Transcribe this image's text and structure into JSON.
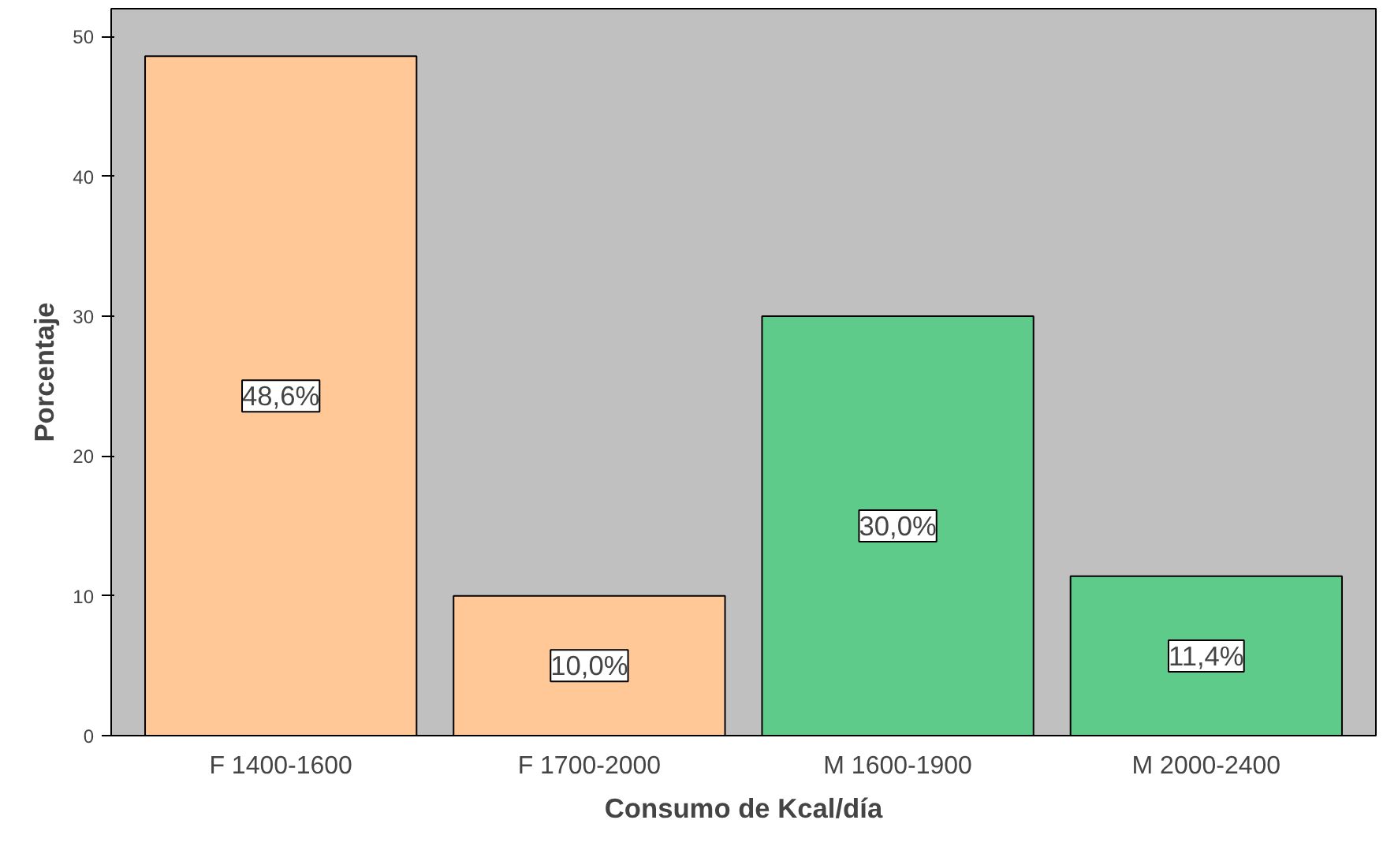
{
  "chart_data": {
    "type": "bar",
    "xlabel": "Consumo de Kcal/día",
    "ylabel": "Porcentaje",
    "categories": [
      "F 1400-1600",
      "F 1700-2000",
      "M 1600-1900",
      "M 2000-2400"
    ],
    "values": [
      48.6,
      10.0,
      30.0,
      11.4
    ],
    "colors": [
      "#ffc896",
      "#ffc896",
      "#5ecb8a",
      "#5ecb8a"
    ],
    "value_labels": [
      "48,6%",
      "10,0%",
      "30,0%",
      "11,4%"
    ],
    "ylim": [
      0,
      52
    ],
    "yticks": [
      0,
      10,
      20,
      30,
      40,
      50
    ],
    "grid": false
  }
}
